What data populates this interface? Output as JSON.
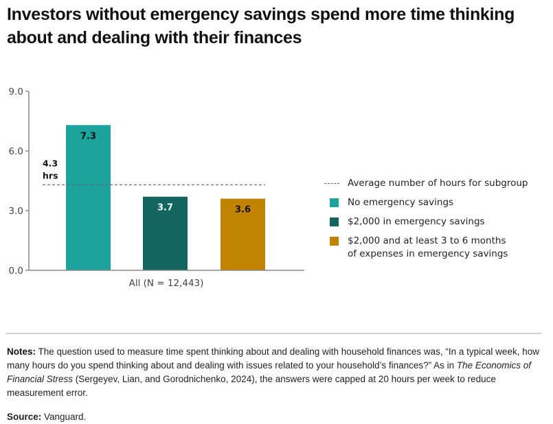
{
  "title": "Investors without emergency savings spend more time thinking about and dealing with their finances",
  "chart_data": {
    "type": "bar",
    "title": "Investors without emergency savings spend more time thinking about and dealing with their finances",
    "xlabel": "",
    "ylabel": "",
    "categories": [
      "All (N = 12,443)"
    ],
    "series": [
      {
        "name": "No emergency savings",
        "values": [
          7.3
        ],
        "label": "7.3",
        "color": "#1ca39c",
        "label_color": "#111111"
      },
      {
        "name": "$2,000 in emergency savings",
        "values": [
          3.7
        ],
        "label": "3.7",
        "color": "#146560",
        "label_color": "#ffffff"
      },
      {
        "name": "$2,000 and at least 3 to 6 months of expenses in emergency savings",
        "values": [
          3.6
        ],
        "label": "3.6",
        "color": "#c08300",
        "label_color": "#111111"
      }
    ],
    "reference_line": {
      "name": "Average number of hours for subgroup",
      "value": 4.3,
      "label_line1": "4.3",
      "label_line2": "hrs",
      "style": "dashed",
      "color": "#666666"
    },
    "ylim": [
      0,
      9
    ],
    "yticks": [
      0,
      3,
      6,
      9
    ],
    "ytick_labels": [
      "0.0",
      "3.0",
      "6.0",
      "9.0"
    ],
    "grid": false,
    "legend_position": "right"
  },
  "legend": {
    "items": [
      {
        "type": "dash",
        "label": "Average number of hours for subgroup"
      },
      {
        "type": "swatch",
        "color": "#1ca39c",
        "label": "No emergency savings"
      },
      {
        "type": "swatch",
        "color": "#146560",
        "label": "$2,000 in emergency savings"
      },
      {
        "type": "swatch",
        "color": "#c08300",
        "label_line1": "$2,000 and at least 3 to 6 months",
        "label_line2": "of expenses in emergency savings"
      }
    ]
  },
  "notes": {
    "heading": "Notes:",
    "text_before_italic": " The question used to measure time spent thinking about and dealing with household finances was, “In a typical week, how many hours do you spend thinking about and dealing with issues related to your household’s finances?” As in ",
    "italic": "The Economics of Financial Stress",
    "text_after_italic": " (Sergeyev, Lian, and Gorodnichenko, 2024), the answers were capped at 20 hours per week to reduce measurement error."
  },
  "source": {
    "heading": "Source:",
    "text": " Vanguard."
  }
}
